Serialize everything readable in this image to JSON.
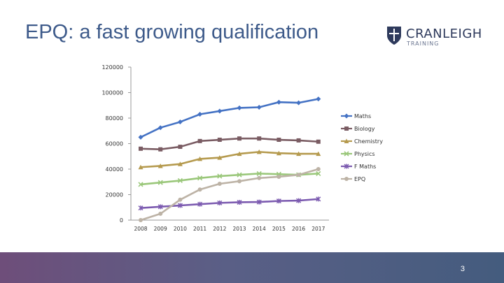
{
  "slide": {
    "title": "EPQ: a fast growing qualification",
    "page_number": "3"
  },
  "logo": {
    "name": "CRANLEIGH",
    "sub": "TRAINING"
  },
  "footer": {
    "gradient_start": "#6e4e7a",
    "gradient_end": "#445c7e"
  },
  "chart_data": {
    "type": "line",
    "title": "",
    "xlabel": "",
    "ylabel": "",
    "ylim": [
      0,
      120000
    ],
    "yticks": [
      0,
      20000,
      40000,
      60000,
      80000,
      100000,
      120000
    ],
    "x": [
      "2008",
      "2009",
      "2010",
      "2011",
      "2012",
      "2013",
      "2014",
      "2015",
      "2016",
      "2017"
    ],
    "legend_position": "right",
    "series": [
      {
        "name": "Maths",
        "color": "#4472c4",
        "marker": "diamond",
        "values": [
          65000,
          72500,
          77000,
          83000,
          85500,
          88000,
          88500,
          92500,
          92000,
          95000
        ]
      },
      {
        "name": "Biology",
        "color": "#7a5c63",
        "marker": "square",
        "values": [
          56000,
          55500,
          57500,
          62000,
          63000,
          64000,
          64000,
          63000,
          62500,
          61500
        ]
      },
      {
        "name": "Chemistry",
        "color": "#b59a4e",
        "marker": "triangle",
        "values": [
          41500,
          42500,
          44000,
          48000,
          49000,
          52000,
          53500,
          52500,
          52000,
          52000
        ]
      },
      {
        "name": "Physics",
        "color": "#9ac77a",
        "marker": "x",
        "values": [
          28000,
          29500,
          31000,
          33000,
          34500,
          35500,
          36500,
          36000,
          35500,
          36500
        ]
      },
      {
        "name": "F Maths",
        "color": "#7c5bb0",
        "marker": "star",
        "values": [
          9500,
          10500,
          11500,
          12500,
          13500,
          14000,
          14200,
          15000,
          15300,
          16500
        ]
      },
      {
        "name": "EPQ",
        "color": "#bdb3a6",
        "marker": "circle",
        "values": [
          0,
          5000,
          16000,
          24000,
          28500,
          30500,
          33000,
          34000,
          35500,
          40000
        ]
      }
    ]
  }
}
